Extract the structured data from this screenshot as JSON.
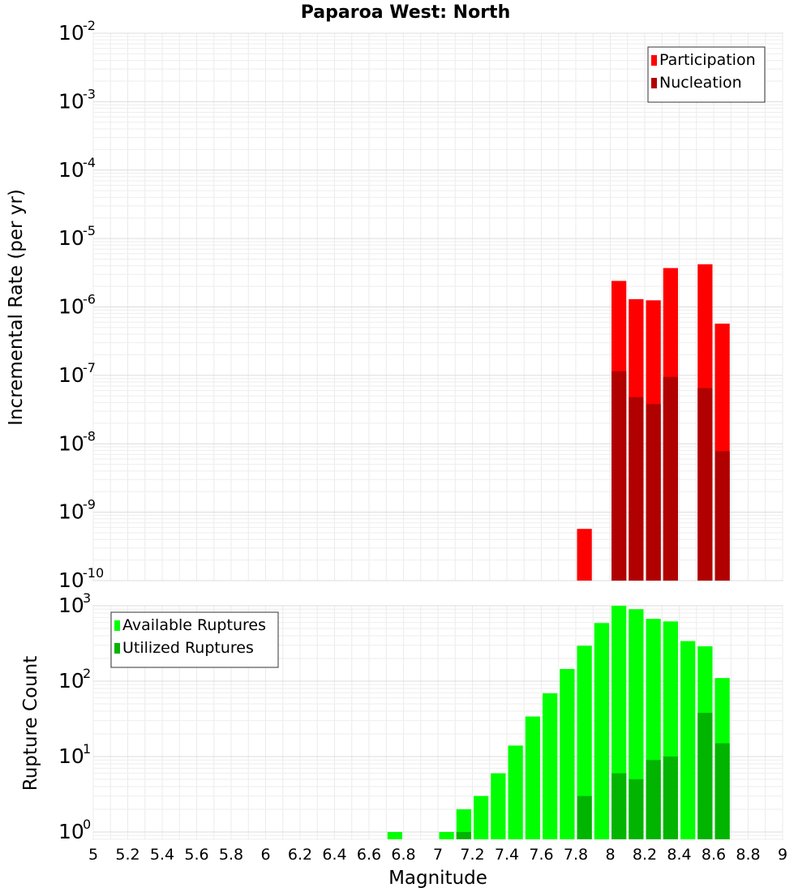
{
  "chart_data": {
    "title": "Paparoa West: North",
    "xlabel": "Magnitude",
    "xlim": [
      5,
      9
    ],
    "xticks": [
      "5",
      "5.2",
      "5.4",
      "5.6",
      "5.8",
      "6",
      "6.2",
      "6.4",
      "6.6",
      "6.8",
      "7",
      "7.2",
      "7.4",
      "7.6",
      "7.8",
      "8",
      "8.2",
      "8.4",
      "8.6",
      "8.8",
      "9"
    ],
    "bin_width": 0.1,
    "panels": [
      {
        "type": "bar",
        "log_scale": true,
        "ylabel": "Incremental Rate (per yr)",
        "ylim": [
          1e-10,
          0.01
        ],
        "yticks_exponents": [
          -10,
          -9,
          -8,
          -7,
          -6,
          -5,
          -4,
          -3,
          -2
        ],
        "grid": true,
        "legend_position": "top-right",
        "series": [
          {
            "name": "Participation",
            "color": "#ff0000",
            "x": [
              7.85,
              8.05,
              8.15,
              8.25,
              8.35,
              8.55,
              8.65
            ],
            "values": [
              5.7e-10,
              2.4e-06,
              1.3e-06,
              1.25e-06,
              3.7e-06,
              4.2e-06,
              5.7e-07
            ]
          },
          {
            "name": "Nucleation",
            "color": "#b00000",
            "x": [
              8.05,
              8.15,
              8.25,
              8.35,
              8.55,
              8.65
            ],
            "values": [
              1.15e-07,
              4.8e-08,
              3.8e-08,
              9.5e-08,
              6.5e-08,
              7.8e-09
            ]
          }
        ]
      },
      {
        "type": "bar",
        "log_scale": true,
        "ylabel": "Rupture Count",
        "ylim": [
          0.8,
          1000
        ],
        "yticks_exponents": [
          0,
          1,
          2,
          3
        ],
        "grid": true,
        "legend_position": "top-left",
        "series": [
          {
            "name": "Available Ruptures",
            "color": "#00ff00",
            "x": [
              6.75,
              7.05,
              7.15,
              7.25,
              7.35,
              7.45,
              7.55,
              7.65,
              7.75,
              7.85,
              7.95,
              8.05,
              8.15,
              8.25,
              8.35,
              8.45,
              8.55,
              8.65
            ],
            "values": [
              1,
              1,
              2,
              3,
              6,
              14,
              34,
              69,
              145,
              295,
              590,
              1000,
              900,
              670,
              620,
              340,
              290,
              110
            ]
          },
          {
            "name": "Utilized Ruptures",
            "color": "#00b400",
            "x": [
              7.15,
              7.85,
              8.05,
              8.15,
              8.25,
              8.35,
              8.55,
              8.65
            ],
            "values": [
              1,
              3,
              6,
              5,
              9,
              10,
              38,
              15
            ]
          }
        ]
      }
    ]
  }
}
